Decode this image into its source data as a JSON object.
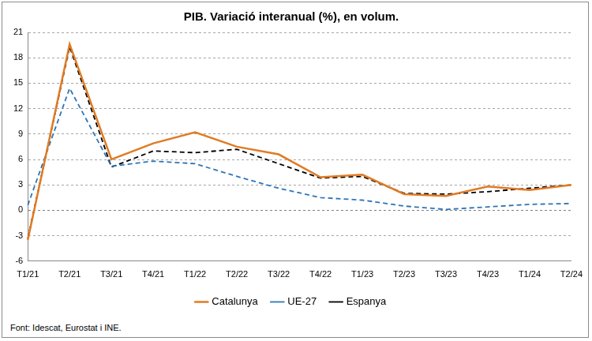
{
  "chart_data": {
    "type": "line",
    "title": "PIB. Variació interanual (%), en volum.",
    "categories": [
      "T1/21",
      "T2/21",
      "T3/21",
      "T4/21",
      "T1/22",
      "T2/22",
      "T3/22",
      "T4/22",
      "T1/23",
      "T2/23",
      "T3/23",
      "T4/23",
      "T1/24",
      "T2/24"
    ],
    "series": [
      {
        "name": "Catalunya",
        "color": "#e07b24",
        "line_style": "solid",
        "values": [
          -3.5,
          19.6,
          6.0,
          7.9,
          9.2,
          7.5,
          6.6,
          3.9,
          4.2,
          1.9,
          1.7,
          2.8,
          2.4,
          3.0
        ]
      },
      {
        "name": "UE-27",
        "color": "#2e75b6",
        "line_style": "dashed",
        "values": [
          0.6,
          14.4,
          5.2,
          5.8,
          5.5,
          4.0,
          2.6,
          1.5,
          1.2,
          0.5,
          0.1,
          0.4,
          0.7,
          0.8
        ]
      },
      {
        "name": "Espanya",
        "color": "#000000",
        "line_style": "dashed",
        "values": [
          -3.3,
          19.3,
          5.1,
          7.0,
          6.8,
          7.2,
          5.5,
          3.8,
          4.0,
          2.0,
          1.9,
          2.2,
          2.6,
          3.0
        ]
      }
    ],
    "ylim": [
      -6,
      21
    ],
    "yticks": [
      -6,
      -3,
      0,
      3,
      6,
      9,
      12,
      15,
      18,
      21
    ],
    "grid": true,
    "legend": "bottom",
    "annotations": [
      "Font: Idescat, Eurostat i INE."
    ]
  }
}
